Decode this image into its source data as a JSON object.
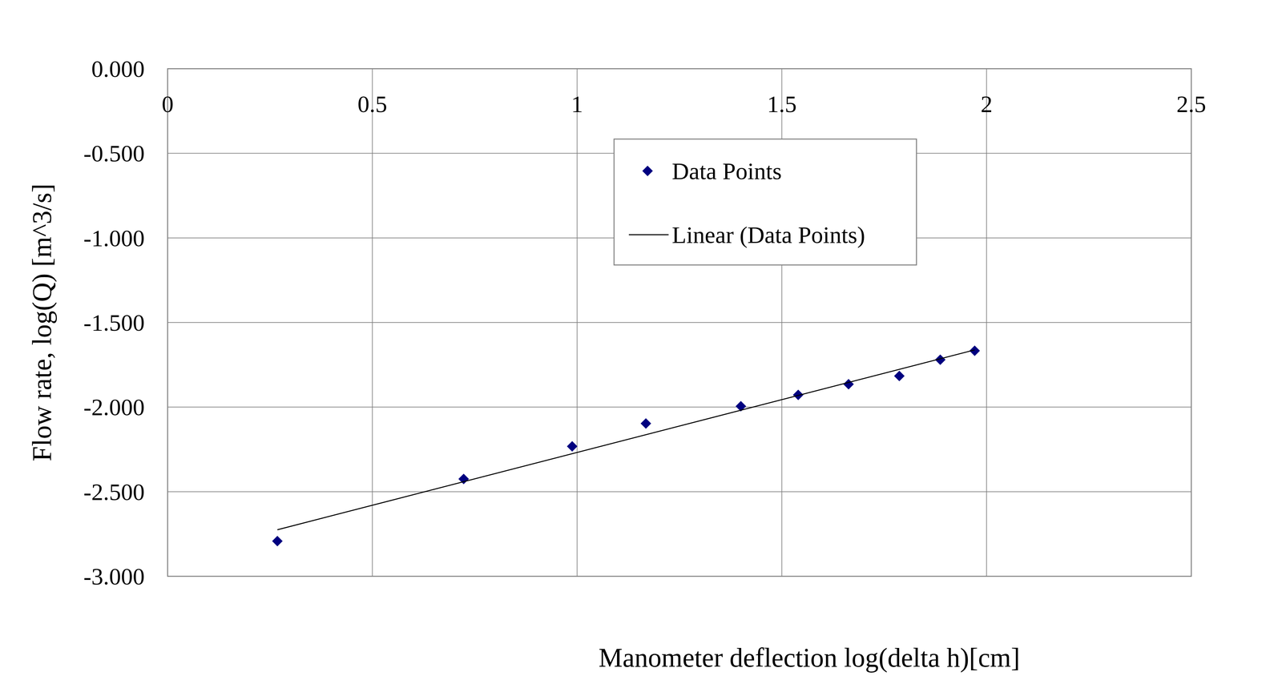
{
  "chart_data": {
    "type": "scatter",
    "x_label": "Manometer deflection log(delta h)[cm]",
    "y_label": "Flow rate, log(Q) [m^3/s]",
    "xlim": [
      0,
      2.5
    ],
    "ylim": [
      -3,
      0
    ],
    "xticks": [
      0,
      0.5,
      1,
      1.5,
      2,
      2.5
    ],
    "yticks": [
      {
        "value": 0,
        "label": "0.000"
      },
      {
        "value": -0.5,
        "label": "-0.500"
      },
      {
        "value": -1,
        "label": "-1.000"
      },
      {
        "value": -1.5,
        "label": "-1.500"
      },
      {
        "value": -2,
        "label": "-2.000"
      },
      {
        "value": -2.5,
        "label": "-2.500"
      },
      {
        "value": -3,
        "label": "-3.000"
      }
    ],
    "grid": true,
    "legend": "top",
    "series": [
      {
        "name": "Data Points",
        "type": "scatter",
        "marker": "diamond",
        "color": "#000080",
        "x": [
          0.268,
          0.723,
          0.988,
          1.168,
          1.4,
          1.54,
          1.663,
          1.787,
          1.887,
          1.971
        ],
        "values": [
          -2.792,
          -2.425,
          -2.232,
          -2.097,
          -1.995,
          -1.928,
          -1.865,
          -1.816,
          -1.72,
          -1.667
        ]
      },
      {
        "name": "Linear (Data Points)",
        "type": "line",
        "line_style": "solid",
        "color": "#000000",
        "x": [
          0.268,
          1.971
        ],
        "values": [
          -2.725,
          -1.662
        ]
      }
    ]
  }
}
